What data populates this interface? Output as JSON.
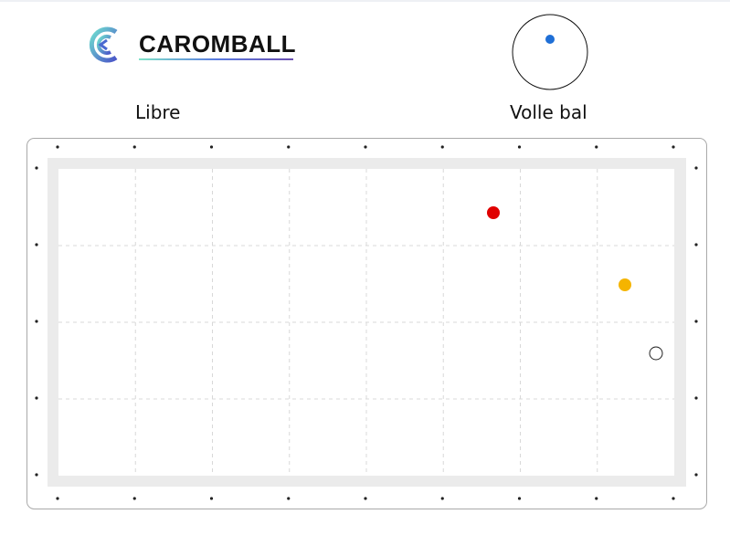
{
  "header": {
    "brand": "CAROMBALL",
    "game_type": "Libre",
    "cue_ball_label": "Volle bal"
  },
  "cue_diagram": {
    "hit_point": {
      "horizontal": 0,
      "vertical": 0.35
    },
    "dot_color": "#1f6fd6"
  },
  "table": {
    "columns": 8,
    "rows": 4,
    "rail_color": "#ebebeb",
    "balls": [
      {
        "name": "red",
        "color": "#e00000"
      },
      {
        "name": "yellow",
        "color": "#f5b400"
      },
      {
        "name": "white",
        "color": "#ffffff"
      }
    ]
  }
}
